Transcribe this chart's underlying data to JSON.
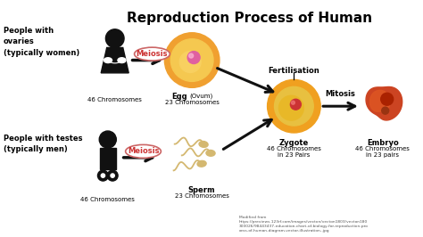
{
  "title": "Reproduction Process of Human",
  "title_fontsize": 11,
  "bg_color": "#ffffff",
  "left_label_ovaries": "People with\novaries\n(typically women)",
  "left_label_testes": "People with testes\n(typically men)",
  "chr46_label": "46 Chromosomes",
  "egg_label_bold": "Egg",
  "egg_label_small": " (Ovum)",
  "egg_label2": "23 Chromosomes",
  "sperm_label": "Sperm\n23 Chromosomes",
  "fertilisation_label": "Fertilisation",
  "zygote_label": "Zygote\n46 Chromosomes\nin 23 Pairs",
  "mitosis_label": "Mitosis",
  "embryo_label": "Embryo\n46 Chromosomes\nin 23 pairs",
  "meiosis_label": "Meiosis",
  "source_text": "Modified from\nhttps://previews.123rf.com/images/vecton/vecton1803/vecton180\n300026/98443437-education-chart-of-biology-for-reproduction-pro\ncess-of-human-diagram-vector-illustration-.jpg",
  "arrow_color": "#111111",
  "egg_outer_color": "#f0a030",
  "egg_mid_color": "#f5c850",
  "egg_nucleus_color": "#e060a0",
  "zygote_outer_color": "#f0a020",
  "zygote_mid_color": "#e8c040",
  "zygote_nucleus_color": "#cc3333",
  "embryo_color": "#cc4422",
  "embryo_dark": "#aa2200",
  "sperm_color": "#d4b870",
  "person_color": "#111111",
  "meiosis_text_color": "#cc3333",
  "meiosis_oval_color": "#cc6666"
}
